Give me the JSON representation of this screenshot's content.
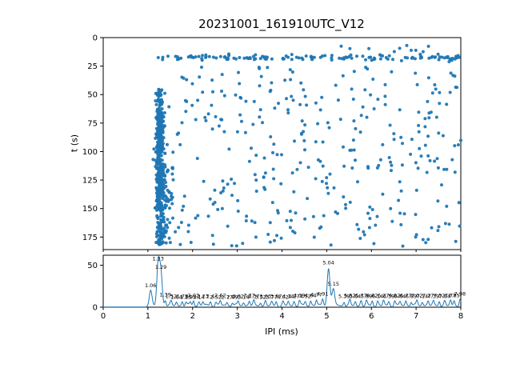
{
  "title": "20231001_161910UTC_V12",
  "colors": {
    "series": "#1f77b4",
    "axes": "#000000",
    "background": "#ffffff"
  },
  "chart_data": [
    {
      "type": "scatter",
      "title": "",
      "xlabel": "",
      "ylabel": "t (s)",
      "xlim": [
        0,
        8
      ],
      "ylim": [
        186,
        0
      ],
      "yticks": [
        0,
        25,
        50,
        75,
        100,
        125,
        150,
        175
      ],
      "grid": false,
      "color": "#1f77b4",
      "marker_size": 2,
      "clusters": [
        {
          "name": "horizontal-band-t18",
          "count": 140,
          "x": {
            "dist": "uniform",
            "min": 1.2,
            "max": 8.0
          },
          "t": {
            "dist": "normal",
            "mean": 17.5,
            "sd": 1.3
          }
        },
        {
          "name": "top-right-sparse",
          "count": 10,
          "x": {
            "dist": "uniform",
            "min": 5.2,
            "max": 8.0
          },
          "t": {
            "dist": "uniform",
            "min": 4,
            "max": 13
          }
        },
        {
          "name": "main-column-ipi-1.27",
          "count": 300,
          "x": {
            "dist": "normal",
            "mean": 1.27,
            "sd": 0.05
          },
          "t": {
            "dist": "uniform",
            "min": 45,
            "max": 183
          }
        },
        {
          "name": "main-column-dense-core",
          "count": 140,
          "x": {
            "dist": "normal",
            "mean": 1.26,
            "sd": 0.035
          },
          "t": {
            "dist": "uniform",
            "min": 60,
            "max": 150
          }
        },
        {
          "name": "column-lower-spread",
          "count": 70,
          "x": {
            "dist": "normal",
            "mean": 1.38,
            "sd": 0.1
          },
          "t": {
            "dist": "uniform",
            "min": 110,
            "max": 182
          }
        },
        {
          "name": "background-scatter",
          "count": 340,
          "x": {
            "dist": "uniform",
            "min": 1.3,
            "max": 8.0
          },
          "t": {
            "dist": "uniform",
            "min": 25,
            "max": 183
          }
        }
      ]
    },
    {
      "type": "line",
      "title": "",
      "xlabel": "IPI (ms)",
      "ylabel": "",
      "xlim": [
        0,
        8
      ],
      "ylim": [
        0,
        62
      ],
      "yticks": [
        0,
        50
      ],
      "xticks": [
        0,
        1,
        2,
        3,
        4,
        5,
        6,
        7,
        8
      ],
      "grid": false,
      "color": "#1f77b4",
      "baseline": 2,
      "peaks": [
        {
          "x": 1.06,
          "h": 18,
          "label": "1.06"
        },
        {
          "x": 1.23,
          "h": 50,
          "label": "1.23"
        },
        {
          "x": 1.29,
          "h": 40,
          "label": "1.29"
        },
        {
          "x": 1.39,
          "h": 7,
          "label": "1.39"
        },
        {
          "x": 1.52,
          "h": 5,
          "label": "1.52"
        },
        {
          "x": 1.64,
          "h": 4,
          "label": "1.64"
        },
        {
          "x": 1.77,
          "h": 5,
          "label": "1.77"
        },
        {
          "x": 1.85,
          "h": 4,
          "label": "1.85"
        },
        {
          "x": 1.95,
          "h": 4,
          "label": "1.95"
        },
        {
          "x": 2.02,
          "h": 6,
          "label": "2.02"
        },
        {
          "x": 2.14,
          "h": 4,
          "label": "2.14"
        },
        {
          "x": 2.23,
          "h": 5,
          "label": "2.23"
        },
        {
          "x": 2.4,
          "h": 5,
          "label": "2.4"
        },
        {
          "x": 2.52,
          "h": 4,
          "label": "2.52"
        },
        {
          "x": 2.62,
          "h": 6,
          "label": "2.62"
        },
        {
          "x": 2.77,
          "h": 4,
          "label": "2.77"
        },
        {
          "x": 2.89,
          "h": 4,
          "label": "2.89"
        },
        {
          "x": 3.02,
          "h": 5,
          "label": "3.02"
        },
        {
          "x": 3.14,
          "h": 4,
          "label": "3.14"
        },
        {
          "x": 3.27,
          "h": 6,
          "label": "3.27"
        },
        {
          "x": 3.37,
          "h": 5,
          "label": "3.37"
        },
        {
          "x": 3.52,
          "h": 4,
          "label": "3.52"
        },
        {
          "x": 3.63,
          "h": 5,
          "label": "3.63"
        },
        {
          "x": 3.77,
          "h": 4,
          "label": "3.77"
        },
        {
          "x": 3.87,
          "h": 5,
          "label": "3.87"
        },
        {
          "x": 4.02,
          "h": 4,
          "label": "4.02"
        },
        {
          "x": 4.14,
          "h": 5,
          "label": "4.14"
        },
        {
          "x": 4.27,
          "h": 5,
          "label": "4.27"
        },
        {
          "x": 4.39,
          "h": 6,
          "label": "4.39"
        },
        {
          "x": 4.52,
          "h": 5,
          "label": "4.52"
        },
        {
          "x": 4.64,
          "h": 6,
          "label": "4.64"
        },
        {
          "x": 4.77,
          "h": 7,
          "label": "4.77"
        },
        {
          "x": 4.91,
          "h": 8,
          "label": "4.91"
        },
        {
          "x": 5.04,
          "h": 45,
          "label": "5.04"
        },
        {
          "x": 5.15,
          "h": 20,
          "label": "5.15"
        },
        {
          "x": 5.39,
          "h": 5,
          "label": "5.39"
        },
        {
          "x": 5.52,
          "h": 6,
          "label": "5.52"
        },
        {
          "x": 5.64,
          "h": 5,
          "label": "5.64"
        },
        {
          "x": 5.77,
          "h": 6,
          "label": "5.77"
        },
        {
          "x": 5.89,
          "h": 5,
          "label": "5.89"
        },
        {
          "x": 6.02,
          "h": 6,
          "label": "6.02"
        },
        {
          "x": 6.14,
          "h": 5,
          "label": "6.14"
        },
        {
          "x": 6.27,
          "h": 6,
          "label": "6.27"
        },
        {
          "x": 6.39,
          "h": 5,
          "label": "6.39"
        },
        {
          "x": 6.52,
          "h": 6,
          "label": "6.52"
        },
        {
          "x": 6.64,
          "h": 5,
          "label": "6.64"
        },
        {
          "x": 6.77,
          "h": 6,
          "label": "6.77"
        },
        {
          "x": 6.89,
          "h": 5,
          "label": "6.89"
        },
        {
          "x": 7.02,
          "h": 6,
          "label": "7.02"
        },
        {
          "x": 7.14,
          "h": 5,
          "label": "7.14"
        },
        {
          "x": 7.27,
          "h": 6,
          "label": "7.27"
        },
        {
          "x": 7.39,
          "h": 5,
          "label": "7.39"
        },
        {
          "x": 7.52,
          "h": 6,
          "label": "7.52"
        },
        {
          "x": 7.64,
          "h": 5,
          "label": "7.64"
        },
        {
          "x": 7.77,
          "h": 6,
          "label": "7.77"
        },
        {
          "x": 7.85,
          "h": 6,
          "label": "7.85"
        },
        {
          "x": 7.98,
          "h": 8,
          "label": "7.98"
        }
      ]
    }
  ]
}
